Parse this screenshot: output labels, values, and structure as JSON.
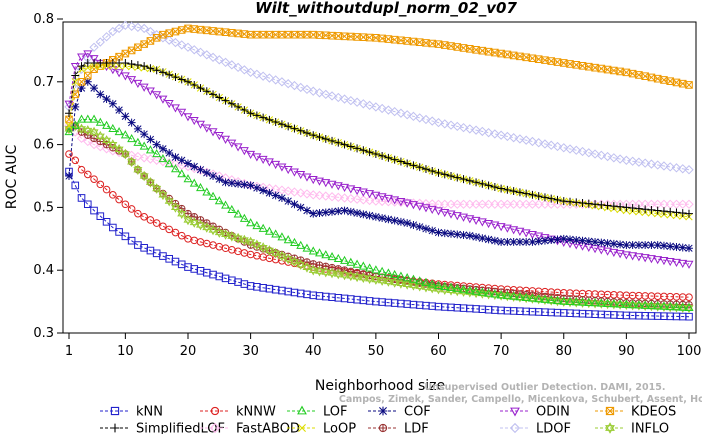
{
  "chart_data": {
    "type": "line",
    "title": "Wilt_withoutdupl_norm_02_v07",
    "xlabel": "Neighborhood size",
    "ylabel": "ROC AUC",
    "xlim": [
      1,
      100
    ],
    "ylim": [
      0.3,
      0.8
    ],
    "xticks": [
      1,
      10,
      20,
      30,
      40,
      50,
      60,
      70,
      80,
      90,
      100
    ],
    "yticks": [
      0.3,
      0.4,
      0.5,
      0.6,
      0.7,
      0.8
    ],
    "grid": false,
    "legend_position": "bottom",
    "credit": "Campos, Zimek, Sander, Campello, Micenkova, Schubert, Assent, Houle",
    "credit2": "Unsupervised Outlier Detection. DAMI, 2015.",
    "series": [
      {
        "name": "kNN",
        "color": "#2222cc",
        "marker": "square",
        "k": [
          1,
          2,
          3,
          5,
          8,
          12,
          20,
          30,
          40,
          50,
          60,
          70,
          80,
          90,
          100
        ],
        "values": [
          0.557,
          0.535,
          0.515,
          0.495,
          0.468,
          0.44,
          0.405,
          0.375,
          0.36,
          0.35,
          0.342,
          0.336,
          0.332,
          0.328,
          0.326
        ]
      },
      {
        "name": "kNNW",
        "color": "#dd2222",
        "marker": "circle",
        "k": [
          1,
          2,
          3,
          5,
          8,
          12,
          20,
          30,
          40,
          50,
          60,
          70,
          80,
          90,
          100
        ],
        "values": [
          0.585,
          0.575,
          0.56,
          0.545,
          0.52,
          0.49,
          0.45,
          0.425,
          0.405,
          0.39,
          0.378,
          0.37,
          0.364,
          0.36,
          0.357
        ]
      },
      {
        "name": "LOF",
        "color": "#22cc22",
        "marker": "triangle-up",
        "k": [
          1,
          2,
          3,
          5,
          7,
          10,
          15,
          20,
          25,
          30,
          40,
          50,
          60,
          70,
          80,
          90,
          100
        ],
        "values": [
          0.62,
          0.63,
          0.64,
          0.64,
          0.63,
          0.615,
          0.585,
          0.545,
          0.51,
          0.475,
          0.43,
          0.4,
          0.375,
          0.36,
          0.35,
          0.345,
          0.34
        ]
      },
      {
        "name": "COF",
        "color": "#0a0a80",
        "marker": "star",
        "k": [
          1,
          2,
          3,
          4,
          6,
          8,
          10,
          12,
          15,
          18,
          20,
          23,
          26,
          30,
          35,
          40,
          45,
          50,
          55,
          60,
          65,
          70,
          75,
          80,
          85,
          90,
          95,
          100
        ],
        "values": [
          0.55,
          0.66,
          0.69,
          0.7,
          0.68,
          0.665,
          0.645,
          0.625,
          0.6,
          0.58,
          0.57,
          0.555,
          0.54,
          0.535,
          0.515,
          0.49,
          0.495,
          0.485,
          0.475,
          0.46,
          0.455,
          0.445,
          0.445,
          0.45,
          0.445,
          0.44,
          0.44,
          0.435
        ]
      },
      {
        "name": "ODIN",
        "color": "#9922cc",
        "marker": "triangle-down",
        "k": [
          1,
          2,
          3,
          4,
          6,
          8,
          10,
          15,
          20,
          25,
          30,
          40,
          50,
          60,
          70,
          80,
          90,
          100
        ],
        "values": [
          0.665,
          0.725,
          0.74,
          0.745,
          0.73,
          0.72,
          0.71,
          0.68,
          0.645,
          0.615,
          0.585,
          0.545,
          0.52,
          0.495,
          0.47,
          0.445,
          0.425,
          0.41
        ]
      },
      {
        "name": "KDEOS",
        "color": "#ee9900",
        "marker": "square-x",
        "k": [
          1,
          2,
          3,
          5,
          8,
          10,
          13,
          16,
          20,
          25,
          30,
          40,
          50,
          60,
          70,
          80,
          90,
          100
        ],
        "values": [
          0.64,
          0.68,
          0.7,
          0.72,
          0.735,
          0.745,
          0.76,
          0.775,
          0.785,
          0.78,
          0.775,
          0.775,
          0.77,
          0.76,
          0.745,
          0.73,
          0.715,
          0.695
        ]
      },
      {
        "name": "SimplifiedLOF",
        "color": "#000000",
        "marker": "plus",
        "k": [
          1,
          2,
          3,
          4,
          6,
          8,
          10,
          13,
          16,
          20,
          25,
          30,
          40,
          50,
          60,
          70,
          80,
          90,
          100
        ],
        "values": [
          0.65,
          0.71,
          0.725,
          0.73,
          0.73,
          0.73,
          0.73,
          0.725,
          0.715,
          0.7,
          0.675,
          0.65,
          0.615,
          0.585,
          0.555,
          0.53,
          0.51,
          0.5,
          0.49
        ]
      },
      {
        "name": "FastABOD",
        "color": "#ffbbee",
        "marker": "diamond",
        "k": [
          1,
          2,
          3,
          5,
          8,
          10,
          15,
          20,
          25,
          30,
          40,
          50,
          60,
          70,
          80,
          90,
          100
        ],
        "values": [
          0.63,
          0.62,
          0.61,
          0.6,
          0.59,
          0.585,
          0.575,
          0.565,
          0.55,
          0.535,
          0.52,
          0.51,
          0.505,
          0.505,
          0.505,
          0.505,
          0.505
        ]
      },
      {
        "name": "LoOP",
        "color": "#dddd00",
        "marker": "x",
        "k": [
          1,
          2,
          3,
          5,
          8,
          10,
          15,
          20,
          25,
          30,
          40,
          50,
          60,
          70,
          80,
          90,
          100
        ],
        "values": [
          0.63,
          0.7,
          0.72,
          0.725,
          0.725,
          0.725,
          0.72,
          0.7,
          0.675,
          0.65,
          0.615,
          0.585,
          0.555,
          0.53,
          0.51,
          0.495,
          0.485
        ]
      },
      {
        "name": "LDF",
        "color": "#993333",
        "marker": "circle-plus",
        "k": [
          1,
          2,
          3,
          5,
          8,
          10,
          12,
          15,
          20,
          25,
          30,
          40,
          50,
          60,
          70,
          80,
          90,
          100
        ],
        "values": [
          0.625,
          0.63,
          0.62,
          0.61,
          0.595,
          0.585,
          0.56,
          0.53,
          0.49,
          0.465,
          0.44,
          0.41,
          0.39,
          0.375,
          0.365,
          0.355,
          0.348,
          0.345
        ]
      },
      {
        "name": "LDOF",
        "color": "#c0c0f0",
        "marker": "diamond",
        "k": [
          1,
          2,
          3,
          5,
          8,
          10,
          13,
          16,
          20,
          25,
          30,
          40,
          50,
          60,
          70,
          80,
          90,
          100
        ],
        "values": [
          0.66,
          0.69,
          0.72,
          0.755,
          0.78,
          0.79,
          0.785,
          0.77,
          0.755,
          0.735,
          0.715,
          0.685,
          0.66,
          0.635,
          0.615,
          0.595,
          0.575,
          0.56
        ]
      },
      {
        "name": "INFLO",
        "color": "#99cc33",
        "marker": "star-of-david",
        "k": [
          1,
          2,
          3,
          5,
          8,
          10,
          12,
          15,
          20,
          25,
          30,
          40,
          50,
          60,
          70,
          80,
          90,
          100
        ],
        "values": [
          0.625,
          0.63,
          0.625,
          0.62,
          0.6,
          0.585,
          0.56,
          0.53,
          0.48,
          0.46,
          0.445,
          0.4,
          0.385,
          0.37,
          0.36,
          0.35,
          0.345,
          0.34
        ]
      }
    ]
  }
}
